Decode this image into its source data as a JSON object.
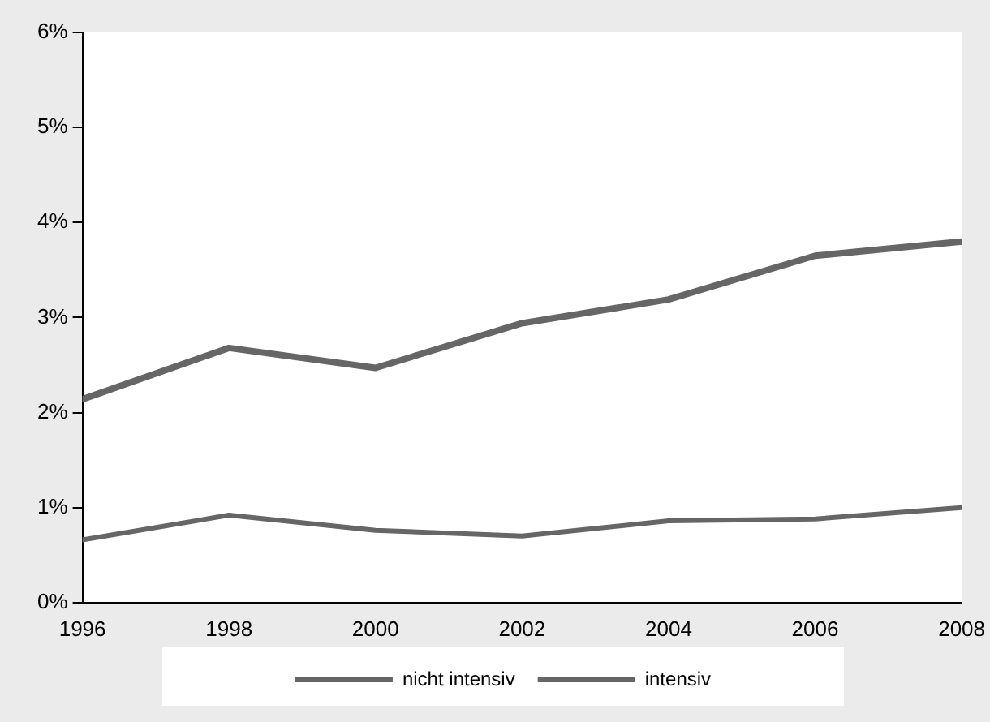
{
  "chart_data": {
    "type": "line",
    "x": [
      1996,
      1998,
      2000,
      2002,
      2004,
      2006,
      2008
    ],
    "series": [
      {
        "name": "nicht intensiv",
        "color": "#666666",
        "values": [
          2.14,
          2.68,
          2.47,
          2.94,
          3.19,
          3.65,
          3.8
        ]
      },
      {
        "name": "intensiv",
        "color": "#666666",
        "values": [
          0.66,
          0.92,
          0.76,
          0.7,
          0.86,
          0.88,
          1.0
        ]
      }
    ],
    "xlim": [
      1996,
      2008
    ],
    "xticks": [
      1996,
      1998,
      2000,
      2002,
      2004,
      2006,
      2008
    ],
    "ylim": [
      0,
      6
    ],
    "yticks": [
      {
        "value": 0,
        "label": "0%"
      },
      {
        "value": 1,
        "label": "1%"
      },
      {
        "value": 2,
        "label": "2%"
      },
      {
        "value": 3,
        "label": "3%"
      },
      {
        "value": 4,
        "label": "4%"
      },
      {
        "value": 5,
        "label": "5%"
      },
      {
        "value": 6,
        "label": "6%"
      }
    ],
    "grid": false,
    "legend": "bottom",
    "marker": "none",
    "line_style": "solid"
  }
}
